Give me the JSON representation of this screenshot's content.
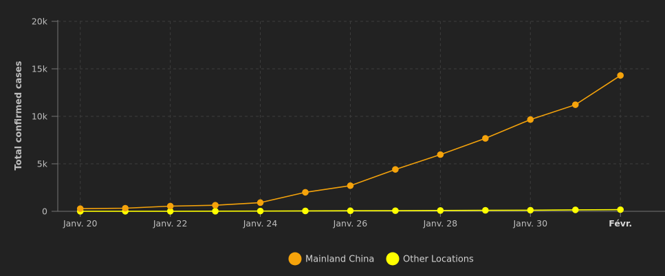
{
  "chart_data": {
    "type": "line",
    "title": "",
    "xlabel": "",
    "ylabel": "Total confirmed cases",
    "ylim": [
      0,
      20000
    ],
    "yticks": [
      {
        "value": 0,
        "label": "0"
      },
      {
        "value": 5000,
        "label": "5k"
      },
      {
        "value": 10000,
        "label": "10k"
      },
      {
        "value": 15000,
        "label": "15k"
      },
      {
        "value": 20000,
        "label": "20k"
      }
    ],
    "xlim": [
      "2020-01-19.5",
      "2020-02-01.7"
    ],
    "xticks": [
      {
        "date": "2020-01-20",
        "label": "Janv. 20",
        "bold": false
      },
      {
        "date": "2020-01-22",
        "label": "Janv. 22",
        "bold": false
      },
      {
        "date": "2020-01-24",
        "label": "Janv. 24",
        "bold": false
      },
      {
        "date": "2020-01-26",
        "label": "Janv. 26",
        "bold": false
      },
      {
        "date": "2020-01-28",
        "label": "Janv. 28",
        "bold": false
      },
      {
        "date": "2020-01-30",
        "label": "Janv. 30",
        "bold": false
      },
      {
        "date": "2020-02-01",
        "label": "Févr.",
        "bold": true
      }
    ],
    "grid": true,
    "legend_position": "bottom",
    "series": [
      {
        "name": "Mainland China",
        "color": "#f5a30b",
        "points": [
          {
            "x": "2020-01-20",
            "y": 278
          },
          {
            "x": "2020-01-21",
            "y": 326
          },
          {
            "x": "2020-01-22",
            "y": 547
          },
          {
            "x": "2020-01-23",
            "y": 639
          },
          {
            "x": "2020-01-24",
            "y": 916
          },
          {
            "x": "2020-01-25",
            "y": 2000
          },
          {
            "x": "2020-01-26",
            "y": 2700
          },
          {
            "x": "2020-01-27",
            "y": 4409
          },
          {
            "x": "2020-01-28",
            "y": 5970
          },
          {
            "x": "2020-01-29",
            "y": 7678
          },
          {
            "x": "2020-01-30",
            "y": 9658
          },
          {
            "x": "2020-01-31",
            "y": 11221
          },
          {
            "x": "2020-02-01",
            "y": 14300
          }
        ]
      },
      {
        "name": "Other Locations",
        "color": "#ffff00",
        "points": [
          {
            "x": "2020-01-20",
            "y": 4
          },
          {
            "x": "2020-01-21",
            "y": 6
          },
          {
            "x": "2020-01-22",
            "y": 8
          },
          {
            "x": "2020-01-23",
            "y": 14
          },
          {
            "x": "2020-01-24",
            "y": 25
          },
          {
            "x": "2020-01-25",
            "y": 40
          },
          {
            "x": "2020-01-26",
            "y": 57
          },
          {
            "x": "2020-01-27",
            "y": 64
          },
          {
            "x": "2020-01-28",
            "y": 87
          },
          {
            "x": "2020-01-29",
            "y": 105
          },
          {
            "x": "2020-01-30",
            "y": 118
          },
          {
            "x": "2020-01-31",
            "y": 153
          },
          {
            "x": "2020-02-01",
            "y": 173
          }
        ]
      }
    ]
  }
}
